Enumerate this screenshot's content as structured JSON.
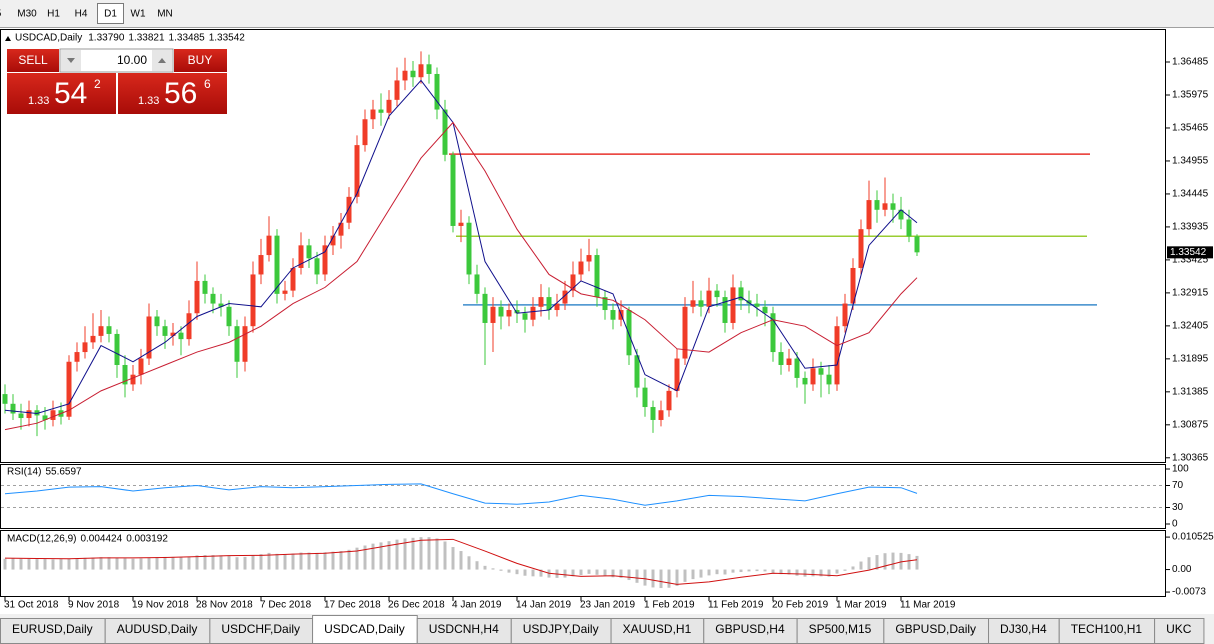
{
  "toolbar": {
    "timeframes": [
      "5",
      "M30",
      "H1",
      "H4",
      "D1",
      "W1",
      "MN"
    ],
    "active": "D1"
  },
  "trade_panel": {
    "sell": "SELL",
    "buy": "BUY",
    "lots": "10.00",
    "bid_big": "1.33",
    "bid_pips": "54",
    "bid_frac": "2",
    "ask_big": "1.33",
    "ask_pips": "56",
    "ask_frac": "6"
  },
  "chart_data": [
    {
      "type": "candlestick",
      "title": "USDCAD,Daily",
      "ohlc_labels": [
        "1.33790",
        "1.33821",
        "1.33485",
        "1.33542"
      ],
      "up_color": "#f03c28",
      "down_color": "#3cc83c",
      "xlim": [
        -0.625,
        145.125
      ],
      "ylim": [
        1.303,
        1.3698
      ],
      "yticks": [
        1.36485,
        1.35975,
        1.35465,
        1.34955,
        1.34445,
        1.33935,
        1.33425,
        1.32915,
        1.32405,
        1.31895,
        1.31385,
        1.30875,
        1.30365
      ],
      "candles": [
        [
          1.3135,
          1.315,
          1.3105,
          1.312
        ],
        [
          1.312,
          1.3135,
          1.3095,
          1.3105
        ],
        [
          1.3105,
          1.312,
          1.308,
          1.3098
        ],
        [
          1.3098,
          1.3125,
          1.3085,
          1.311
        ],
        [
          1.311,
          1.3118,
          1.307,
          1.3102
        ],
        [
          1.3102,
          1.3115,
          1.308,
          1.3095
        ],
        [
          1.3095,
          1.3125,
          1.3085,
          1.311
        ],
        [
          1.311,
          1.3122,
          1.3088,
          1.31
        ],
        [
          1.31,
          1.3195,
          1.3095,
          1.3185
        ],
        [
          1.3185,
          1.3215,
          1.317,
          1.32
        ],
        [
          1.32,
          1.324,
          1.319,
          1.3215
        ],
        [
          1.3215,
          1.326,
          1.3205,
          1.3225
        ],
        [
          1.3225,
          1.3265,
          1.3215,
          1.324
        ],
        [
          1.324,
          1.3255,
          1.3215,
          1.3228
        ],
        [
          1.3228,
          1.3235,
          1.316,
          1.318
        ],
        [
          1.318,
          1.3195,
          1.313,
          1.315
        ],
        [
          1.315,
          1.318,
          1.314,
          1.3165
        ],
        [
          1.3165,
          1.3205,
          1.315,
          1.319
        ],
        [
          1.319,
          1.3275,
          1.318,
          1.3255
        ],
        [
          1.3255,
          1.3265,
          1.3225,
          1.324
        ],
        [
          1.324,
          1.325,
          1.3205,
          1.3225
        ],
        [
          1.3225,
          1.3245,
          1.321,
          1.323
        ],
        [
          1.323,
          1.324,
          1.3195,
          1.322
        ],
        [
          1.322,
          1.328,
          1.321,
          1.326
        ],
        [
          1.326,
          1.334,
          1.325,
          1.331
        ],
        [
          1.331,
          1.332,
          1.3275,
          1.329
        ],
        [
          1.329,
          1.33,
          1.326,
          1.3275
        ],
        [
          1.3275,
          1.329,
          1.3255,
          1.327
        ],
        [
          1.327,
          1.328,
          1.3225,
          1.324
        ],
        [
          1.324,
          1.325,
          1.316,
          1.3185
        ],
        [
          1.3185,
          1.3255,
          1.317,
          1.324
        ],
        [
          1.324,
          1.334,
          1.323,
          1.332
        ],
        [
          1.332,
          1.3375,
          1.3305,
          1.335
        ],
        [
          1.335,
          1.341,
          1.334,
          1.338
        ],
        [
          1.338,
          1.339,
          1.3275,
          1.329
        ],
        [
          1.329,
          1.331,
          1.328,
          1.3295
        ],
        [
          1.3295,
          1.3345,
          1.3285,
          1.333
        ],
        [
          1.333,
          1.3385,
          1.332,
          1.3365
        ],
        [
          1.3365,
          1.3375,
          1.333,
          1.3345
        ],
        [
          1.3345,
          1.3355,
          1.3305,
          1.332
        ],
        [
          1.332,
          1.338,
          1.331,
          1.3365
        ],
        [
          1.3365,
          1.3395,
          1.335,
          1.338
        ],
        [
          1.338,
          1.3415,
          1.336,
          1.34
        ],
        [
          1.34,
          1.3455,
          1.339,
          1.344
        ],
        [
          1.344,
          1.3535,
          1.343,
          1.352
        ],
        [
          1.352,
          1.3575,
          1.351,
          1.356
        ],
        [
          1.356,
          1.359,
          1.3545,
          1.3575
        ],
        [
          1.3575,
          1.36,
          1.355,
          1.357
        ],
        [
          1.357,
          1.3605,
          1.356,
          1.359
        ],
        [
          1.359,
          1.364,
          1.358,
          1.362
        ],
        [
          1.362,
          1.3655,
          1.3605,
          1.3635
        ],
        [
          1.3635,
          1.365,
          1.361,
          1.3625
        ],
        [
          1.3625,
          1.3665,
          1.3615,
          1.3645
        ],
        [
          1.3645,
          1.366,
          1.3615,
          1.363
        ],
        [
          1.363,
          1.364,
          1.356,
          1.3575
        ],
        [
          1.3575,
          1.359,
          1.3495,
          1.3505
        ],
        [
          1.3505,
          1.351,
          1.3385,
          1.3395
        ],
        [
          1.3395,
          1.342,
          1.337,
          1.34
        ],
        [
          1.34,
          1.341,
          1.3305,
          1.332
        ],
        [
          1.332,
          1.3335,
          1.3275,
          1.329
        ],
        [
          1.329,
          1.33,
          1.318,
          1.3245
        ],
        [
          1.3245,
          1.3285,
          1.32,
          1.327
        ],
        [
          1.327,
          1.328,
          1.3235,
          1.3255
        ],
        [
          1.3255,
          1.3275,
          1.324,
          1.3265
        ],
        [
          1.3265,
          1.328,
          1.3245,
          1.326
        ],
        [
          1.326,
          1.327,
          1.323,
          1.325
        ],
        [
          1.325,
          1.3285,
          1.324,
          1.327
        ],
        [
          1.327,
          1.3305,
          1.3255,
          1.3285
        ],
        [
          1.3285,
          1.33,
          1.325,
          1.3265
        ],
        [
          1.3265,
          1.329,
          1.3255,
          1.3275
        ],
        [
          1.3275,
          1.331,
          1.3265,
          1.3295
        ],
        [
          1.3295,
          1.334,
          1.3285,
          1.332
        ],
        [
          1.332,
          1.336,
          1.331,
          1.334
        ],
        [
          1.334,
          1.3375,
          1.3325,
          1.335
        ],
        [
          1.335,
          1.336,
          1.327,
          1.3285
        ],
        [
          1.3285,
          1.3295,
          1.325,
          1.3265
        ],
        [
          1.3265,
          1.3275,
          1.3235,
          1.325
        ],
        [
          1.325,
          1.328,
          1.324,
          1.3265
        ],
        [
          1.3265,
          1.327,
          1.318,
          1.3195
        ],
        [
          1.3195,
          1.3205,
          1.313,
          1.3145
        ],
        [
          1.3145,
          1.316,
          1.31,
          1.3115
        ],
        [
          1.3115,
          1.3125,
          1.3075,
          1.3095
        ],
        [
          1.3095,
          1.3125,
          1.3085,
          1.311
        ],
        [
          1.311,
          1.315,
          1.31,
          1.314
        ],
        [
          1.314,
          1.3205,
          1.313,
          1.319
        ],
        [
          1.319,
          1.3285,
          1.318,
          1.327
        ],
        [
          1.327,
          1.331,
          1.326,
          1.328
        ],
        [
          1.328,
          1.3295,
          1.3255,
          1.327
        ],
        [
          1.327,
          1.3315,
          1.326,
          1.3295
        ],
        [
          1.3295,
          1.3305,
          1.327,
          1.3285
        ],
        [
          1.3285,
          1.3295,
          1.323,
          1.3245
        ],
        [
          1.3245,
          1.332,
          1.3235,
          1.33
        ],
        [
          1.33,
          1.331,
          1.3265,
          1.328
        ],
        [
          1.328,
          1.3295,
          1.326,
          1.3275
        ],
        [
          1.3275,
          1.329,
          1.3255,
          1.327
        ],
        [
          1.327,
          1.328,
          1.324,
          1.326
        ],
        [
          1.326,
          1.327,
          1.3185,
          1.32
        ],
        [
          1.32,
          1.3215,
          1.3165,
          1.318
        ],
        [
          1.318,
          1.3205,
          1.317,
          1.319
        ],
        [
          1.319,
          1.32,
          1.3145,
          1.316
        ],
        [
          1.316,
          1.317,
          1.312,
          1.315
        ],
        [
          1.315,
          1.319,
          1.314,
          1.3175
        ],
        [
          1.3175,
          1.3185,
          1.313,
          1.3165
        ],
        [
          1.3165,
          1.318,
          1.3135,
          1.315
        ],
        [
          1.315,
          1.3255,
          1.314,
          1.324
        ],
        [
          1.324,
          1.329,
          1.323,
          1.3275
        ],
        [
          1.3275,
          1.3345,
          1.3265,
          1.333
        ],
        [
          1.333,
          1.3405,
          1.332,
          1.339
        ],
        [
          1.339,
          1.3465,
          1.338,
          1.3435
        ],
        [
          1.3435,
          1.345,
          1.34,
          1.342
        ],
        [
          1.342,
          1.347,
          1.341,
          1.343
        ],
        [
          1.343,
          1.3445,
          1.34,
          1.342
        ],
        [
          1.342,
          1.344,
          1.339,
          1.3405
        ],
        [
          1.3405,
          1.342,
          1.337,
          1.3379
        ],
        [
          1.3379,
          1.33821,
          1.33485,
          1.33542
        ]
      ],
      "lines": [
        {
          "color": "#10108c",
          "x": [
            0,
            4,
            8,
            12,
            16,
            20,
            24,
            28,
            32,
            36,
            40,
            44,
            48,
            52,
            56,
            60,
            64,
            68,
            72,
            76,
            80,
            84,
            88,
            92,
            96,
            100,
            104,
            108,
            112,
            114
          ],
          "values": [
            1.311,
            1.3105,
            1.312,
            1.321,
            1.3185,
            1.3215,
            1.3255,
            1.3275,
            1.327,
            1.333,
            1.3355,
            1.3445,
            1.3565,
            1.362,
            1.3555,
            1.334,
            1.326,
            1.3265,
            1.331,
            1.329,
            1.3165,
            1.314,
            1.327,
            1.3285,
            1.325,
            1.3175,
            1.318,
            1.3365,
            1.342,
            1.34
          ]
        },
        {
          "color": "#c81e32",
          "x": [
            0,
            4,
            8,
            12,
            16,
            20,
            24,
            28,
            32,
            36,
            40,
            44,
            48,
            52,
            56,
            60,
            64,
            68,
            72,
            76,
            80,
            84,
            88,
            92,
            96,
            100,
            104,
            108,
            112,
            114
          ],
          "values": [
            1.308,
            1.309,
            1.311,
            1.314,
            1.316,
            1.318,
            1.32,
            1.3215,
            1.324,
            1.3275,
            1.33,
            1.334,
            1.342,
            1.35,
            1.3555,
            1.348,
            1.339,
            1.332,
            1.329,
            1.328,
            1.325,
            1.3205,
            1.32,
            1.323,
            1.325,
            1.324,
            1.321,
            1.323,
            1.329,
            1.3315
          ]
        }
      ],
      "levels": [
        {
          "value": 1.3506,
          "color": "#e8302a"
        },
        {
          "value": 1.3379,
          "color": "#9acd32"
        },
        {
          "value": 1.3273,
          "color": "#3c8ccc"
        }
      ]
    },
    {
      "type": "line",
      "title": "RSI(14)",
      "color": "#1e90ff",
      "xlim": [
        -0.625,
        145.125
      ],
      "ylim": [
        0,
        100
      ],
      "yticks": [
        100,
        70,
        30,
        0
      ],
      "levels": [
        70,
        30
      ],
      "x": [
        0,
        4,
        8,
        12,
        16,
        20,
        24,
        28,
        32,
        36,
        40,
        44,
        48,
        52,
        56,
        60,
        64,
        68,
        72,
        76,
        80,
        84,
        88,
        92,
        96,
        100,
        104,
        108,
        112,
        114
      ],
      "values": [
        55,
        60,
        67,
        68,
        60,
        66,
        70,
        62,
        68,
        66,
        68,
        70,
        72,
        73,
        55,
        38,
        36,
        40,
        52,
        45,
        34,
        42,
        52,
        50,
        46,
        42,
        55,
        67,
        66,
        55.6597
      ]
    },
    {
      "type": "macd",
      "title": "MACD(12,26,9)",
      "hist_color": "#c0c0c0",
      "xlim": [
        -0.625,
        145.125
      ],
      "ylim": [
        -0.0089,
        0.0125
      ],
      "yticks": [
        0.010525,
        {
          "value": 0,
          "label": "0.00"
        },
        -0.0073
      ],
      "histogram": [
        0.0035,
        0.0036,
        0.0035,
        0.0035,
        0.0034,
        0.0034,
        0.0033,
        0.0034,
        0.0035,
        0.0036,
        0.0038,
        0.0039,
        0.004,
        0.004,
        0.0038,
        0.0036,
        0.0035,
        0.0036,
        0.0039,
        0.004,
        0.0041,
        0.0041,
        0.004,
        0.0042,
        0.0046,
        0.0047,
        0.0047,
        0.0046,
        0.0044,
        0.004,
        0.0041,
        0.0046,
        0.005,
        0.0054,
        0.0051,
        0.005,
        0.0052,
        0.0055,
        0.0055,
        0.0054,
        0.0056,
        0.0058,
        0.006,
        0.0064,
        0.0071,
        0.0078,
        0.0084,
        0.0088,
        0.0092,
        0.0097,
        0.0101,
        0.0103,
        0.0105,
        0.0105,
        0.0101,
        0.0091,
        0.0073,
        0.006,
        0.0043,
        0.0027,
        0.0012,
        0.0004,
        -0.0004,
        -0.001,
        -0.0015,
        -0.002,
        -0.0022,
        -0.0023,
        -0.0026,
        -0.0027,
        -0.0026,
        -0.0022,
        -0.0018,
        -0.0014,
        -0.0017,
        -0.0021,
        -0.0025,
        -0.0027,
        -0.0034,
        -0.0043,
        -0.0052,
        -0.0058,
        -0.006,
        -0.0059,
        -0.0053,
        -0.004,
        -0.0031,
        -0.0026,
        -0.0019,
        -0.0015,
        -0.0016,
        -0.001,
        -0.0008,
        -0.0006,
        -0.0005,
        -0.0006,
        -0.0011,
        -0.0015,
        -0.0016,
        -0.002,
        -0.0023,
        -0.0022,
        -0.0022,
        -0.0023,
        -0.0013,
        -0.0004,
        0.001,
        0.0026,
        0.004,
        0.0047,
        0.0053,
        0.0055,
        0.0054,
        0.005,
        0.004424
      ],
      "signal": {
        "color": "#d01010",
        "x": [
          0,
          4,
          8,
          12,
          16,
          20,
          24,
          28,
          32,
          36,
          40,
          44,
          48,
          52,
          56,
          60,
          64,
          68,
          72,
          76,
          80,
          84,
          88,
          92,
          96,
          100,
          104,
          108,
          112,
          114
        ],
        "values": [
          0.0037,
          0.0036,
          0.0035,
          0.0038,
          0.0038,
          0.0039,
          0.0042,
          0.0045,
          0.0046,
          0.005,
          0.0053,
          0.006,
          0.0078,
          0.0095,
          0.0098,
          0.006,
          0.002,
          -0.0012,
          -0.0022,
          -0.002,
          -0.003,
          -0.0048,
          -0.004,
          -0.0025,
          -0.0012,
          -0.0015,
          -0.002,
          -0.0002,
          0.0025,
          0.003192
        ]
      },
      "xticks": [
        {
          "value": 0,
          "label": "31 Oct 2018"
        },
        {
          "value": 8,
          "label": "9 Nov 2018"
        },
        {
          "value": 16,
          "label": "19 Nov 2018"
        },
        {
          "value": 24,
          "label": "28 Nov 2018"
        },
        {
          "value": 32,
          "label": "7 Dec 2018"
        },
        {
          "value": 40,
          "label": "17 Dec 2018"
        },
        {
          "value": 48,
          "label": "26 Dec 2018"
        },
        {
          "value": 56,
          "label": "4 Jan 2019"
        },
        {
          "value": 64,
          "label": "14 Jan 2019"
        },
        {
          "value": 72,
          "label": "23 Jan 2019"
        },
        {
          "value": 80,
          "label": "1 Feb 2019"
        },
        {
          "value": 88,
          "label": "11 Feb 2019"
        },
        {
          "value": 96,
          "label": "20 Feb 2019"
        },
        {
          "value": 104,
          "label": "1 Mar 2019"
        },
        {
          "value": 112,
          "label": "11 Mar 2019"
        }
      ]
    }
  ],
  "tabs": {
    "items": [
      "EURUSD,Daily",
      "AUDUSD,Daily",
      "USDCHF,Daily",
      "USDCAD,Daily",
      "USDCNH,H4",
      "USDJPY,Daily",
      "XAUUSD,H1",
      "GBPUSD,H4",
      "SP500,M15",
      "GBPUSD,Daily",
      "DJ30,H4",
      "TECH100,H1",
      "UKC"
    ],
    "active": "USDCAD,Daily"
  }
}
